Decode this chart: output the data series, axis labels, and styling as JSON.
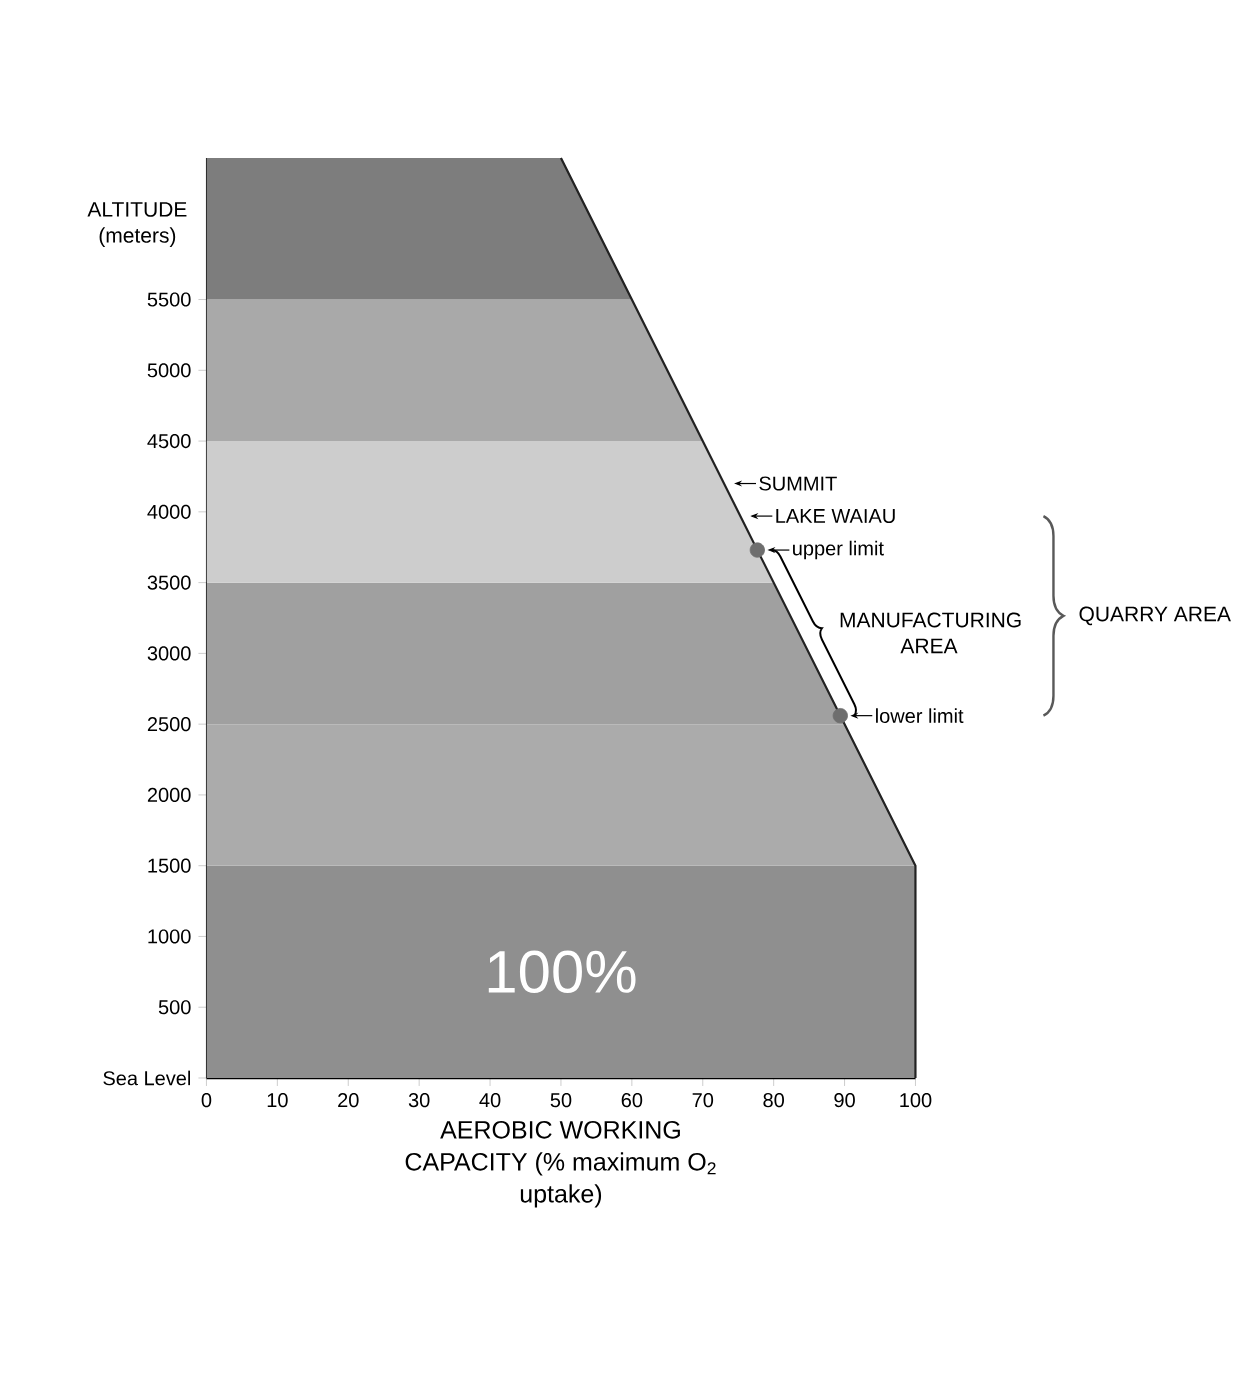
{
  "chart_data": {
    "type": "line",
    "xlabel": "AEROBIC WORKING CAPACITY (% maximum O$_{2}$ uptake)",
    "ylabel": "ALTITUDE (meters)",
    "series": [
      {
        "color": "#222222",
        "x": [
          100,
          100,
          50
        ],
        "values": [
          0,
          1500,
          6500
        ]
      },
      {
        "type": "scatter",
        "color": "#6e6e6e",
        "marker": "circle",
        "x": [
          77.7,
          89.4
        ],
        "values": [
          3730,
          2560
        ]
      }
    ],
    "xlim": [
      0,
      100
    ],
    "ylim": [
      0,
      6500
    ],
    "xticks": [
      0,
      10,
      20,
      30,
      40,
      50,
      60,
      70,
      80,
      90,
      100
    ],
    "yticks": [
      {
        "value": 0,
        "label": "Sea Level"
      },
      500,
      1000,
      1500,
      2000,
      2500,
      3000,
      3500,
      4000,
      4500,
      5000,
      5500
    ],
    "bands": [
      {
        "axis": "y",
        "from": 0,
        "to": 1500,
        "color": "#8f8f8f"
      },
      {
        "axis": "y",
        "from": 1500,
        "to": 2500,
        "color": "#ababab"
      },
      {
        "axis": "y",
        "from": 2500,
        "to": 3500,
        "color": "#a0a0a0"
      },
      {
        "axis": "y",
        "from": 3500,
        "to": 4500,
        "color": "#cdcdcd"
      },
      {
        "axis": "y",
        "from": 4500,
        "to": 5500,
        "color": "#a9a9a9"
      },
      {
        "axis": "y",
        "from": 5500,
        "to": 6500,
        "color": "#7d7d7d"
      }
    ],
    "annotations": [
      "100%",
      "MANUFACTURING AREA",
      "QUARRY AREA",
      {
        "text": "SUMMIT",
        "x": 73,
        "y": 4200
      },
      {
        "text": "LAKE WAIAU",
        "x": 75.3,
        "y": 3970
      },
      {
        "text": "upper limit",
        "x": 77.7,
        "y": 3730
      },
      {
        "text": "lower limit",
        "x": 89.4,
        "y": 2560
      }
    ]
  }
}
